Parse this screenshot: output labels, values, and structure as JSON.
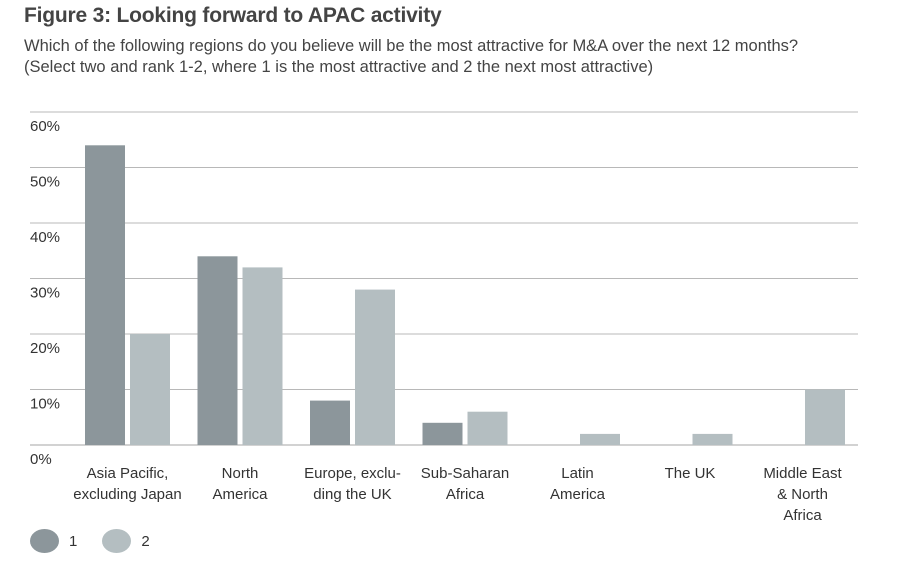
{
  "header": {
    "title": "Figure 3: Looking forward to APAC activity",
    "subtitle_line1": "Which of the following regions do you believe will be the most attractive for M&A over the next 12 months?",
    "subtitle_line2": "(Select two and rank 1-2, where 1 is the most attractive and 2 the next most attractive)"
  },
  "colors": {
    "series1": "#8c969b",
    "series2": "#b4bec1",
    "grid": "#b8b8b8",
    "text": "#333333"
  },
  "chart_data": {
    "type": "bar",
    "categories": [
      [
        "Asia Pacific,",
        "excluding Japan"
      ],
      [
        "North",
        "America"
      ],
      [
        "Europe, exclu-",
        "ding the UK"
      ],
      [
        "Sub-Saharan",
        "Africa"
      ],
      [
        "Latin",
        "America"
      ],
      [
        "The UK"
      ],
      [
        "Middle East",
        "& North",
        "Africa"
      ]
    ],
    "series": [
      {
        "name": "1",
        "values": [
          54,
          34,
          8,
          4,
          0,
          0,
          0
        ]
      },
      {
        "name": "2",
        "values": [
          20,
          32,
          28,
          6,
          2,
          2,
          10
        ]
      }
    ],
    "ylim": [
      0,
      60
    ],
    "yticks": [
      0,
      10,
      20,
      30,
      40,
      50,
      60
    ],
    "ytick_labels": [
      "0%",
      "10%",
      "20%",
      "30%",
      "40%",
      "50%",
      "60%"
    ],
    "grid": true,
    "legend_position": "bottom-left"
  },
  "legend": [
    {
      "label": "1",
      "color_key": "series1"
    },
    {
      "label": "2",
      "color_key": "series2"
    }
  ]
}
